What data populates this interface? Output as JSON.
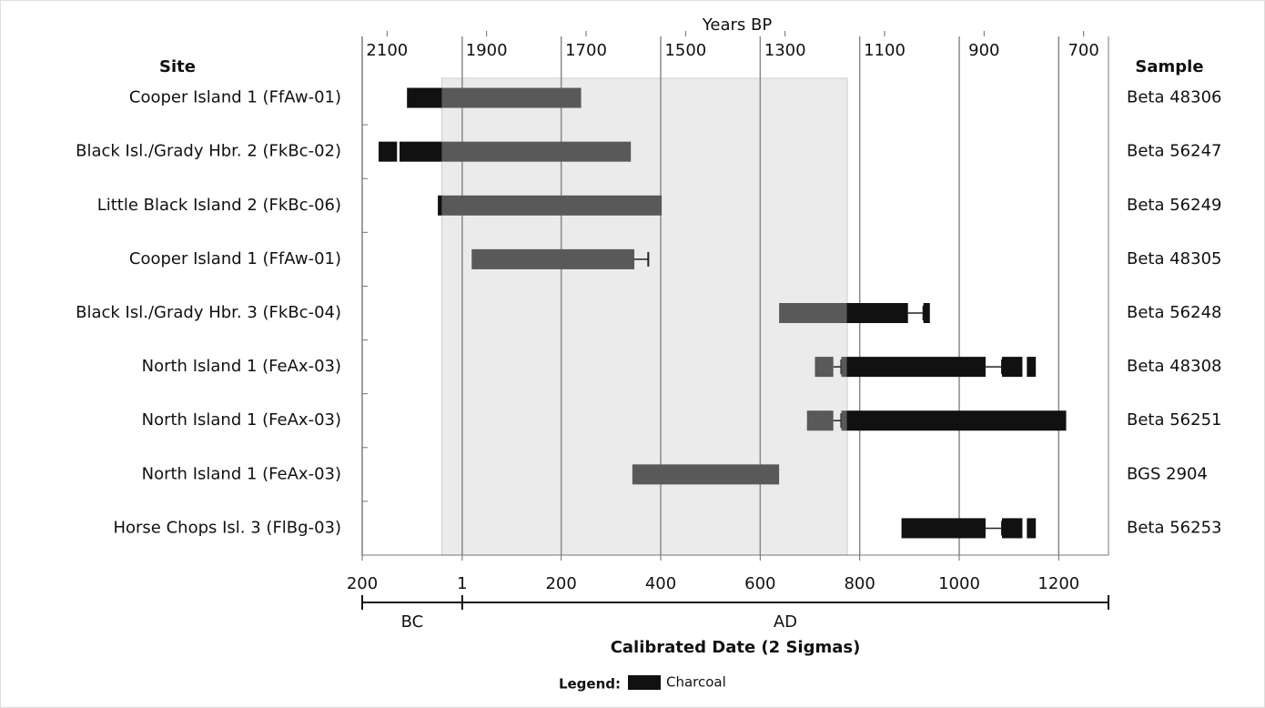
{
  "chart_data": {
    "type": "range-bar",
    "x2_title": "Years BP",
    "x_title": "Calibrated Date (2 Sigmas)",
    "site_header": "Site",
    "sample_header": "Sample",
    "sites": [
      "Cooper Island 1 (FfAw-01)",
      "Black Isl./Grady Hbr. 2 (FkBc-02)",
      "Little Black Island 2 (FkBc-06)",
      "Cooper Island 1 (FfAw-01)",
      "Black Isl./Grady Hbr. 3 (FkBc-04)",
      "North Island 1 (FeAx-03)",
      "North Island 1 (FeAx-03)",
      "North Island 1 (FeAx-03)",
      "Horse Chops Isl. 3 (FlBg-03)"
    ],
    "samples": [
      "Beta 48306",
      "Beta 56247",
      "Beta 56249",
      "Beta 48305",
      "Beta 56248",
      "Beta 48308",
      "Beta 56251",
      "BGS 2904",
      "Beta 56253"
    ],
    "rows": [
      {
        "bars": [
          {
            "start": -110,
            "end": -40,
            "charcoal": true
          },
          {
            "start": -40,
            "end": 240,
            "charcoal": false
          }
        ],
        "whiskers": []
      },
      {
        "bars": [
          {
            "start": -167,
            "end": -130,
            "charcoal": true
          },
          {
            "start": -125,
            "end": -40,
            "charcoal": true
          },
          {
            "start": -40,
            "end": 340,
            "charcoal": false
          }
        ],
        "whiskers": []
      },
      {
        "bars": [
          {
            "start": -48,
            "end": -40,
            "charcoal": true
          },
          {
            "start": -40,
            "end": 402,
            "charcoal": false
          }
        ],
        "whiskers": []
      },
      {
        "bars": [
          {
            "start": 20,
            "end": 347,
            "charcoal": false
          }
        ],
        "whiskers": [
          [
            347,
            375
          ]
        ]
      },
      {
        "bars": [
          {
            "start": 638,
            "end": 774,
            "charcoal": false
          },
          {
            "start": 774,
            "end": 897,
            "charcoal": true
          },
          {
            "start": 928,
            "end": 941,
            "charcoal": true
          }
        ],
        "whiskers": [
          [
            897,
            928
          ]
        ]
      },
      {
        "bars": [
          {
            "start": 710,
            "end": 747,
            "charcoal": false
          },
          {
            "start": 763,
            "end": 774,
            "charcoal": false
          },
          {
            "start": 774,
            "end": 1053,
            "charcoal": true
          },
          {
            "start": 1086,
            "end": 1127,
            "charcoal": true
          },
          {
            "start": 1136,
            "end": 1154,
            "charcoal": true
          }
        ],
        "whiskers": [
          [
            747,
            763
          ],
          [
            1053,
            1086
          ]
        ]
      },
      {
        "bars": [
          {
            "start": 694,
            "end": 747,
            "charcoal": false
          },
          {
            "start": 763,
            "end": 774,
            "charcoal": false
          },
          {
            "start": 774,
            "end": 1215,
            "charcoal": true
          }
        ],
        "whiskers": [
          [
            747,
            763
          ]
        ]
      },
      {
        "bars": [
          {
            "start": 343,
            "end": 638,
            "charcoal": false
          }
        ],
        "whiskers": []
      },
      {
        "bars": [
          {
            "start": 884,
            "end": 1053,
            "charcoal": true
          },
          {
            "start": 1086,
            "end": 1127,
            "charcoal": true
          },
          {
            "start": 1136,
            "end": 1154,
            "charcoal": true
          }
        ],
        "whiskers": [
          [
            1053,
            1086
          ]
        ]
      }
    ],
    "xlim": [
      -200,
      1300
    ],
    "xticks": [
      {
        "value": -200,
        "label": "200"
      },
      1,
      200,
      400,
      600,
      800,
      1000,
      1200
    ],
    "x2lim": [
      2150,
      650
    ],
    "x2ticks": [
      2100,
      1900,
      1700,
      1500,
      1300,
      1100,
      900,
      700
    ],
    "era_labels": [
      "BC",
      "AD"
    ],
    "era_boundary": 1,
    "shaded_span": [
      -40,
      775
    ],
    "grid": true,
    "colors": {
      "charcoal": "#111111",
      "other": "#595959",
      "shade": "#ebebeb",
      "grid": "#8a8a8a"
    },
    "legend": {
      "title": "Legend:",
      "label": "Charcoal"
    }
  }
}
